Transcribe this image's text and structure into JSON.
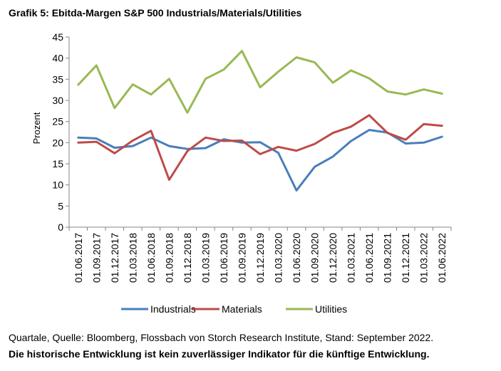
{
  "colors": {
    "Industrials": "#4a7ebb",
    "Materials": "#be4b48",
    "Utilities": "#98b954"
  },
  "chart_data": {
    "type": "line",
    "title": "Grafik 5: Ebitda-Margen S&P 500 Industrials/Materials/Utilities",
    "xlabel": "",
    "ylabel": "Prozent",
    "ylim": [
      0,
      45
    ],
    "yticks": [
      "0",
      "5",
      "10",
      "15",
      "20",
      "25",
      "30",
      "35",
      "40",
      "45"
    ],
    "grid": false,
    "legend": "bottom",
    "categories": [
      "01.06.2017",
      "01.09.2017",
      "01.12.2017",
      "01.03.2018",
      "01.06.2018",
      "01.09.2018",
      "01.12.2018",
      "01.03.2019",
      "01.06.2019",
      "01.09.2019",
      "01.12.2019",
      "01.03.2020",
      "01.06.2020",
      "01.09.2020",
      "01.12.2020",
      "01.03.2021",
      "01.06.2021",
      "01.09.2021",
      "01.12.2021",
      "01.03.2022",
      "01.06.2022"
    ],
    "series": [
      {
        "name": "Industrials",
        "values": [
          21.2,
          21.0,
          18.8,
          19.2,
          21.2,
          19.2,
          18.5,
          18.7,
          20.8,
          20.0,
          20.1,
          17.6,
          8.7,
          14.3,
          16.7,
          20.4,
          23.0,
          22.4,
          19.8,
          20.0,
          21.4
        ]
      },
      {
        "name": "Materials",
        "values": [
          20.0,
          20.2,
          17.5,
          20.5,
          22.8,
          11.2,
          18.0,
          21.2,
          20.4,
          20.5,
          17.3,
          19.0,
          18.1,
          19.7,
          22.3,
          23.8,
          26.5,
          22.3,
          20.7,
          24.4,
          24.0
        ]
      },
      {
        "name": "Utilities",
        "values": [
          33.7,
          38.3,
          28.2,
          33.8,
          31.4,
          35.1,
          27.1,
          35.1,
          37.3,
          41.7,
          33.1,
          36.8,
          40.2,
          39.0,
          34.2,
          37.1,
          35.2,
          32.1,
          31.4,
          32.6,
          31.6
        ]
      }
    ]
  },
  "footer": {
    "source": "Quartale, Quelle: Bloomberg, Flossbach von Storch Research Institute, Stand: September 2022.",
    "disclaimer": "Die historische Entwicklung ist kein zuverlässiger Indikator für die künftige Entwicklung."
  }
}
